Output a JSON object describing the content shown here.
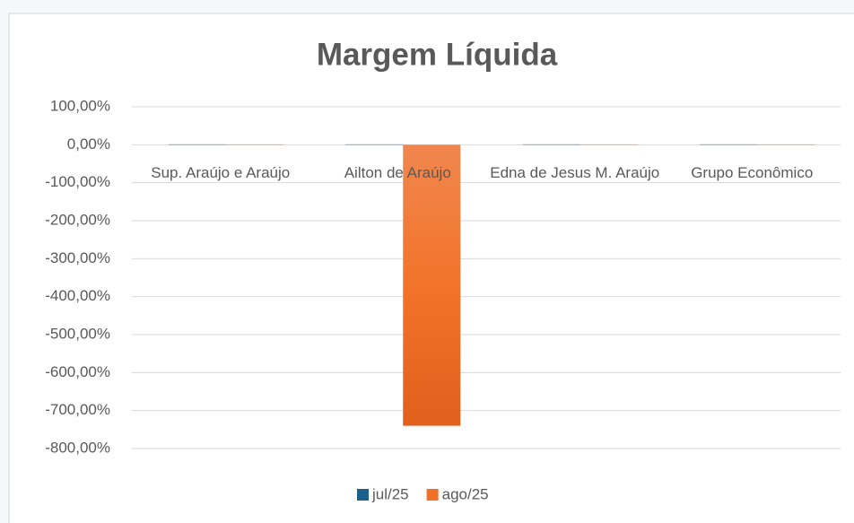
{
  "chart_data": {
    "type": "bar",
    "title": "Margem Líquida",
    "categories": [
      "Sup. Araújo e Araújo",
      "Ailton de Araújo",
      "Edna de Jesus M. Araújo",
      "Grupo Econômico"
    ],
    "series": [
      {
        "name": "jul/25",
        "color": "#1f5f8b",
        "values": [
          1,
          1,
          1,
          1
        ]
      },
      {
        "name": "ago/25",
        "color": "#f07028",
        "values": [
          1,
          -740,
          1,
          1
        ]
      }
    ],
    "ylim": [
      -800,
      100
    ],
    "yticks": [
      {
        "value": 100,
        "label": "100,00%"
      },
      {
        "value": 0,
        "label": "0,00%"
      },
      {
        "value": -100,
        "label": "-100,00%"
      },
      {
        "value": -200,
        "label": "-200,00%"
      },
      {
        "value": -300,
        "label": "-300,00%"
      },
      {
        "value": -400,
        "label": "-400,00%"
      },
      {
        "value": -500,
        "label": "-500,00%"
      },
      {
        "value": -600,
        "label": "-600,00%"
      },
      {
        "value": -700,
        "label": "-700,00%"
      },
      {
        "value": -800,
        "label": "-800,00%"
      }
    ],
    "grid": true,
    "legend": "bottom"
  }
}
